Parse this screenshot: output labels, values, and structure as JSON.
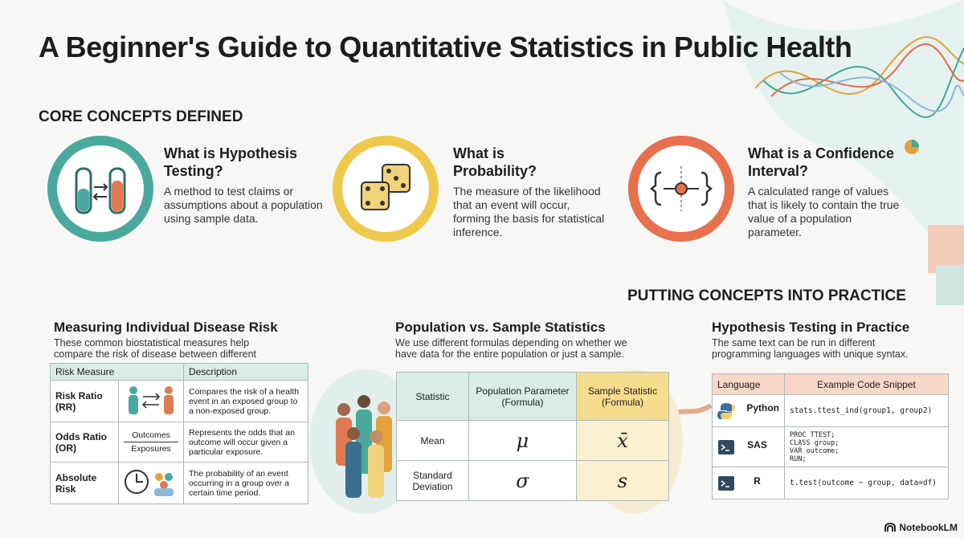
{
  "title": "A Beginner's Guide to Quantitative Statistics in Public Health",
  "core_concepts": {
    "heading": "CORE CONCEPTS DEFINED",
    "items": [
      {
        "title": "What is Hypothesis Testing?",
        "text": "A method to test claims or assumptions about a population using sample data."
      },
      {
        "title": "What is Probability?",
        "text": "The measure of the likelihood that an event will occur, forming the basis for statistical inference."
      },
      {
        "title": "What is a Confidence Interval?",
        "text": "A calculated range of values that is likely to contain the true value of a population parameter."
      }
    ]
  },
  "practice_heading": "PUTTING CONCEPTS INTO PRACTICE",
  "risk": {
    "title": "Measuring Individual Disease Risk",
    "subtitle": "These common biostatistical measures help compare the risk of disease between different groups.",
    "headers": [
      "Risk Measure",
      "Description"
    ],
    "rows": [
      {
        "measure": "Risk Ratio (RR)",
        "description": "Compares the risk of a health event in an exposed group to a non-exposed group."
      },
      {
        "measure": "Odds Ratio (OR)",
        "description": "Represents the odds that an outcome will occur given a particular exposure."
      },
      {
        "measure": "Absolute Risk",
        "description": "The probability of an event occurring in a group over a certain time period."
      }
    ],
    "fraction": {
      "numerator": "Outcomes",
      "denominator": "Exposures"
    }
  },
  "population": {
    "title": "Population vs. Sample Statistics",
    "subtitle": "We use different formulas depending on whether we have data for the entire population or just a sample.",
    "headers": [
      "Statistic",
      "Population Parameter (Formula)",
      "Sample Statistic (Formula)"
    ],
    "rows": [
      [
        "Mean",
        "μ",
        "x̄"
      ],
      [
        "Standard Deviation",
        "σ",
        "s"
      ]
    ]
  },
  "code": {
    "title": "Hypothesis Testing in Practice",
    "subtitle": "The same text can be run in different programming languages with unique syntax.",
    "headers": [
      "Language",
      "Example Code Snippet"
    ],
    "rows": [
      [
        "Python",
        "stats.ttest_ind(group1, group2)"
      ],
      [
        "SAS",
        "PROC TTEST;\nCLASS group;\nVAR outcome;\nRUN;"
      ],
      [
        "R",
        "t.test(outcome ~ group, data=df)"
      ]
    ]
  },
  "footer": "NotebookLM"
}
